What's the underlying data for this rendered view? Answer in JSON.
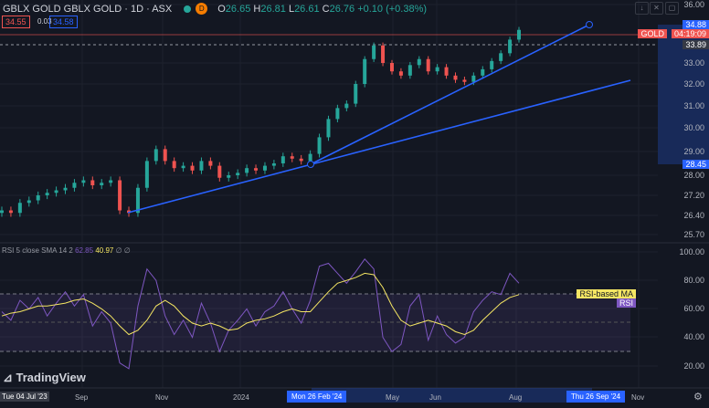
{
  "header": {
    "symbol": "GBLX GOLD GBLX GOLD · 1D · ASX",
    "status_badge": "D",
    "ohlc": {
      "o_label": "O",
      "o": "26.65",
      "h_label": "H",
      "h": "26.81",
      "l_label": "L",
      "l": "26.61",
      "c_label": "C",
      "c": "26.76",
      "change": "+0.10 (+0.38%)"
    },
    "sell_price": "34.55",
    "spread": "0.03",
    "buy_price": "34.58"
  },
  "price_axis": {
    "ticks": [
      "36.00",
      "33.00",
      "32.00",
      "31.00",
      "30.00",
      "29.00",
      "28.00",
      "27.20",
      "26.40",
      "25.70"
    ],
    "current_price": "34.88",
    "symbol_tag": "GOLD",
    "countdown": "04:19:09",
    "dashed_level": "33.89",
    "marker_price": "28.45"
  },
  "rsi": {
    "legend": "RSI 5 close SMA 14 2",
    "rsi_value": "62.85",
    "ma_value": "40.97",
    "extra": "∅ ∅",
    "axis_ticks": [
      "100.00",
      "80.00",
      "60.00",
      "40.00",
      "20.00"
    ],
    "ma_tag": "RSI-based MA",
    "rsi_tag": "RSI"
  },
  "time_axis": {
    "cursor_label": "Tue 04 Jul '23",
    "ticks": [
      "Sep",
      "Nov",
      "2024",
      "May",
      "Jun",
      "Aug",
      "Nov"
    ],
    "range_start": "Mon 26 Feb '24",
    "range_end": "Thu 26 Sep '24"
  },
  "logo": "TradingView",
  "toolbar": {
    "icons": [
      "arrow-down-icon",
      "collapse-icon",
      "fullscreen-icon"
    ]
  },
  "colors": {
    "up": "#26a69a",
    "down": "#ef5350",
    "trendline": "#2962ff",
    "rsi": "#7e57c2",
    "rsi_ma": "#f5e663",
    "background": "#131722"
  },
  "chart_data": {
    "type": "candlestick",
    "price_ticks": [
      36.0,
      33.89,
      33.0,
      32.0,
      31.0,
      30.0,
      29.0,
      28.45,
      28.0,
      27.2,
      26.4,
      25.7
    ],
    "closes": [
      26.6,
      26.5,
      26.9,
      27.0,
      27.2,
      27.3,
      27.4,
      27.5,
      27.7,
      27.8,
      27.6,
      27.7,
      27.8,
      26.6,
      26.5,
      27.5,
      28.6,
      29.1,
      28.6,
      28.3,
      28.4,
      28.2,
      28.6,
      28.4,
      27.9,
      28.0,
      28.1,
      28.3,
      28.2,
      28.4,
      28.5,
      28.8,
      28.7,
      28.6,
      28.9,
      29.6,
      30.4,
      30.9,
      31.1,
      32.0,
      33.2,
      33.9,
      33.0,
      32.6,
      32.4,
      32.9,
      33.2,
      32.6,
      32.8,
      32.4,
      32.2,
      32.1,
      32.4,
      32.7,
      33.1,
      33.5,
      34.2,
      34.7
    ],
    "rsi_values": [
      58,
      52,
      66,
      60,
      68,
      55,
      64,
      72,
      62,
      70,
      48,
      58,
      50,
      22,
      18,
      62,
      88,
      80,
      55,
      42,
      52,
      40,
      64,
      50,
      30,
      45,
      52,
      60,
      48,
      58,
      62,
      72,
      60,
      50,
      66,
      90,
      92,
      85,
      78,
      86,
      95,
      88,
      40,
      30,
      35,
      62,
      70,
      38,
      55,
      42,
      36,
      40,
      58,
      66,
      72,
      70,
      85,
      78
    ],
    "rsi_ma": [
      55,
      57,
      58,
      60,
      62,
      62,
      63,
      64,
      66,
      67,
      64,
      60,
      55,
      48,
      42,
      45,
      52,
      62,
      66,
      62,
      55,
      50,
      48,
      50,
      48,
      45,
      46,
      50,
      52,
      53,
      55,
      58,
      60,
      58,
      58,
      65,
      72,
      78,
      80,
      82,
      85,
      84,
      75,
      62,
      52,
      48,
      50,
      52,
      50,
      48,
      44,
      42,
      45,
      52,
      58,
      64,
      68,
      70
    ],
    "trendlines": [
      {
        "from": [
          "2023-10",
          26.4
        ],
        "to": [
          "2024-10",
          32.2
        ]
      },
      {
        "from": [
          "2024-02-26",
          28.45
        ],
        "to": [
          "2024-09-26",
          35.0
        ]
      }
    ],
    "rsi_levels": [
      70,
      50,
      30
    ]
  }
}
